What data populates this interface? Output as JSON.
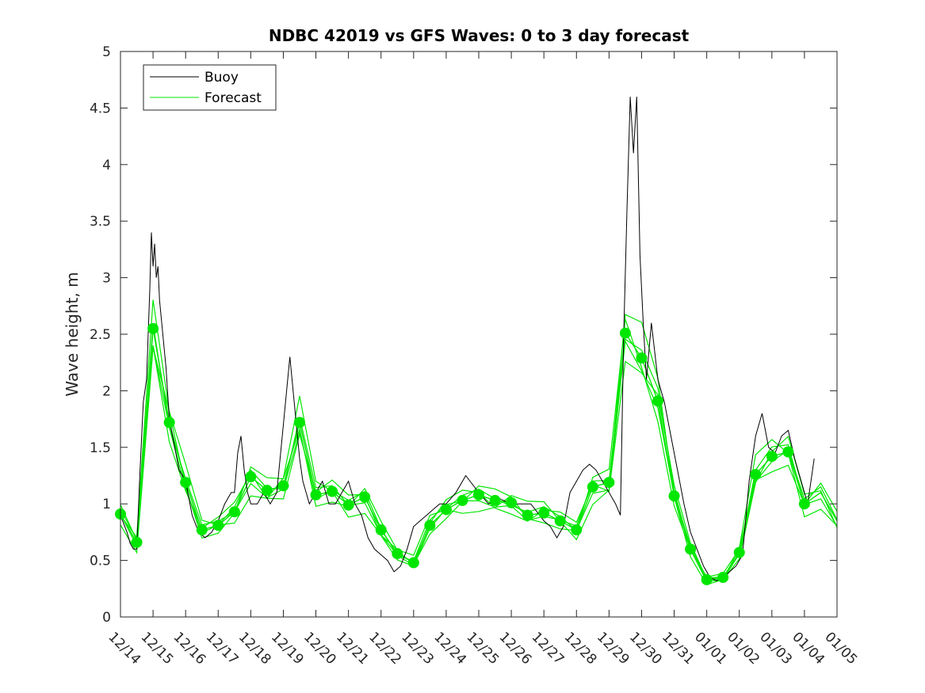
{
  "chart_data": {
    "type": "line",
    "title": "NDBC 42019 vs GFS Waves: 0 to 3 day forecast",
    "xlabel": "",
    "ylabel": "Wave height, m",
    "ylim": [
      0,
      5
    ],
    "xlim": [
      0,
      22
    ],
    "yticks": [
      0,
      0.5,
      1,
      1.5,
      2,
      2.5,
      3,
      3.5,
      4,
      4.5,
      5
    ],
    "ytick_labels": [
      "0",
      "0.5",
      "1",
      "1.5",
      "2",
      "2.5",
      "3",
      "3.5",
      "4",
      "4.5",
      "5"
    ],
    "xtick_labels": [
      "12/14",
      "12/15",
      "12/16",
      "12/17",
      "12/18",
      "12/19",
      "12/20",
      "12/21",
      "12/22",
      "12/23",
      "12/24",
      "12/25",
      "12/26",
      "12/27",
      "12/28",
      "12/29",
      "12/30",
      "12/31",
      "01/01",
      "01/02",
      "01/03",
      "01/04",
      "01/05"
    ],
    "grid": false,
    "legend": {
      "position": "top-left",
      "entries": [
        "Buoy",
        "Forecast"
      ]
    },
    "colors": {
      "buoy": "#000000",
      "forecast": "#00e600",
      "axis": "#262626"
    },
    "series": [
      {
        "name": "Buoy",
        "x": [
          0,
          0.2,
          0.3,
          0.4,
          0.5,
          0.6,
          0.7,
          0.8,
          0.9,
          0.95,
          1.0,
          1.05,
          1.1,
          1.15,
          1.2,
          1.3,
          1.4,
          1.5,
          1.6,
          1.8,
          2.0,
          2.2,
          2.4,
          2.6,
          2.8,
          3.0,
          3.2,
          3.4,
          3.5,
          3.6,
          3.7,
          3.8,
          3.9,
          4.0,
          4.2,
          4.4,
          4.6,
          4.8,
          5.0,
          5.2,
          5.4,
          5.5,
          5.6,
          5.7,
          5.8,
          6.0,
          6.2,
          6.4,
          6.6,
          6.8,
          7.0,
          7.2,
          7.4,
          7.6,
          7.8,
          8.0,
          8.2,
          8.4,
          8.6,
          8.8,
          9.0,
          9.2,
          9.4,
          9.6,
          9.8,
          10.0,
          10.3,
          10.6,
          11.0,
          11.3,
          11.6,
          12.0,
          12.3,
          12.6,
          13.0,
          13.2,
          13.4,
          13.6,
          13.8,
          14.0,
          14.2,
          14.4,
          14.6,
          14.8,
          15.0,
          15.2,
          15.35,
          15.45,
          15.55,
          15.65,
          15.75,
          15.85,
          15.95,
          16.05,
          16.15,
          16.3,
          16.5,
          16.7,
          16.9,
          17.1,
          17.3,
          17.5,
          17.7,
          17.9,
          18.1,
          18.3,
          18.5,
          18.7,
          18.9,
          19.1,
          19.3,
          19.5,
          19.7,
          19.9,
          20.1,
          20.3,
          20.5,
          20.7,
          20.9,
          21.1,
          21.3
        ],
        "values": [
          0.9,
          0.75,
          0.65,
          0.6,
          0.6,
          1.3,
          1.9,
          2.1,
          2.9,
          3.4,
          3.1,
          3.3,
          3.0,
          3.1,
          2.8,
          2.5,
          2.2,
          1.75,
          1.6,
          1.3,
          1.2,
          0.9,
          0.75,
          0.7,
          0.75,
          0.85,
          1.0,
          1.1,
          1.1,
          1.45,
          1.6,
          1.3,
          1.1,
          1.0,
          1.0,
          1.1,
          1.0,
          1.1,
          1.7,
          2.3,
          1.7,
          1.4,
          1.2,
          1.1,
          1.0,
          1.1,
          1.2,
          1.0,
          1.0,
          1.1,
          1.2,
          1.0,
          0.9,
          0.7,
          0.6,
          0.55,
          0.5,
          0.4,
          0.45,
          0.6,
          0.8,
          0.85,
          0.9,
          0.95,
          1.0,
          1.0,
          1.1,
          1.25,
          1.1,
          1.0,
          1.05,
          1.0,
          1.0,
          1.0,
          0.85,
          0.8,
          0.7,
          0.8,
          1.1,
          1.2,
          1.3,
          1.35,
          1.3,
          1.2,
          1.1,
          1.0,
          0.9,
          2.5,
          3.6,
          4.6,
          4.1,
          4.6,
          3.2,
          2.6,
          2.1,
          2.6,
          2.1,
          1.9,
          1.6,
          1.3,
          1.0,
          0.75,
          0.6,
          0.45,
          0.35,
          0.32,
          0.35,
          0.4,
          0.45,
          0.55,
          1.2,
          1.6,
          1.8,
          1.5,
          1.45,
          1.6,
          1.65,
          1.4,
          1.2,
          1.0,
          1.4
        ]
      },
      {
        "name": "Forecast",
        "x": [
          0,
          0.5,
          1.0,
          1.5,
          2.0,
          2.5,
          3.0,
          3.5,
          4.0,
          4.5,
          5.0,
          5.5,
          6.0,
          6.5,
          7.0,
          7.5,
          8.0,
          8.5,
          9.0,
          9.5,
          10.0,
          10.5,
          11.0,
          11.5,
          12.0,
          12.5,
          13.0,
          13.5,
          14.0,
          14.5,
          15.0,
          15.5,
          16.0,
          16.5,
          17.0,
          17.5,
          18.0,
          18.5,
          19.0,
          19.5,
          20.0,
          20.5,
          21.0,
          21.5,
          22.0
        ],
        "values": [
          0.91,
          0.66,
          2.55,
          1.72,
          1.19,
          0.77,
          0.81,
          0.93,
          1.24,
          1.12,
          1.16,
          1.72,
          1.08,
          1.11,
          0.99,
          1.06,
          0.77,
          0.56,
          0.48,
          0.81,
          0.95,
          1.03,
          1.08,
          1.03,
          1.01,
          0.9,
          0.92,
          0.85,
          0.77,
          1.15,
          1.19,
          2.51,
          2.29,
          1.91,
          1.07,
          0.6,
          0.33,
          0.35,
          0.57,
          1.26,
          1.42,
          1.46,
          1.0,
          1.1,
          0.85
        ]
      }
    ],
    "markers": {
      "name": "Forecast analysis points",
      "x": [
        0,
        0.5,
        1.0,
        1.5,
        2.0,
        2.5,
        3.0,
        3.5,
        4.0,
        4.5,
        5.0,
        5.5,
        6.0,
        6.5,
        7.0,
        7.5,
        8.0,
        8.5,
        9.0,
        9.5,
        10.0,
        10.5,
        11.0,
        11.5,
        12.0,
        12.5,
        13.0,
        13.5,
        14.0,
        14.5,
        15.0,
        15.5,
        16.0,
        16.5,
        17.0,
        17.5,
        18.0,
        18.5,
        19.0,
        19.5,
        20.0,
        20.5,
        21.0
      ],
      "values": [
        0.91,
        0.66,
        2.55,
        1.72,
        1.19,
        0.77,
        0.81,
        0.93,
        1.24,
        1.12,
        1.16,
        1.72,
        1.08,
        1.11,
        0.99,
        1.06,
        0.77,
        0.56,
        0.48,
        0.81,
        0.95,
        1.03,
        1.08,
        1.03,
        1.01,
        0.9,
        0.92,
        0.85,
        0.77,
        1.15,
        1.19,
        2.51,
        2.29,
        1.91,
        1.07,
        0.6,
        0.33,
        0.35,
        0.57,
        1.26,
        1.42,
        1.46,
        1.0
      ]
    }
  }
}
